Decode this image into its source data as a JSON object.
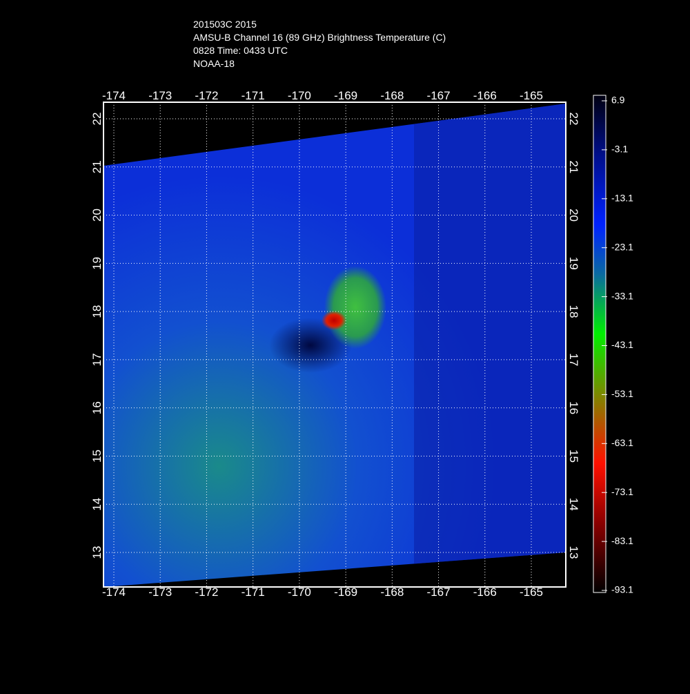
{
  "header": {
    "lines": [
      "201503C 2015",
      "AMSU-B Channel 16 (89 GHz) Brightness Temperature (C)",
      "0828 Time: 0433 UTC",
      "NOAA-18"
    ]
  },
  "map": {
    "lon_ticks": [
      -174,
      -173,
      -172,
      -171,
      -170,
      -169,
      -168,
      -167,
      -166,
      -165
    ],
    "lat_ticks": [
      13,
      14,
      15,
      16,
      17,
      18,
      19,
      20,
      21,
      22
    ]
  },
  "colorbar": {
    "ticks": [
      6.9,
      -3.1,
      -13.1,
      -23.1,
      -33.1,
      -43.1,
      -53.1,
      -63.1,
      -73.1,
      -83.1,
      -93.1
    ]
  }
}
